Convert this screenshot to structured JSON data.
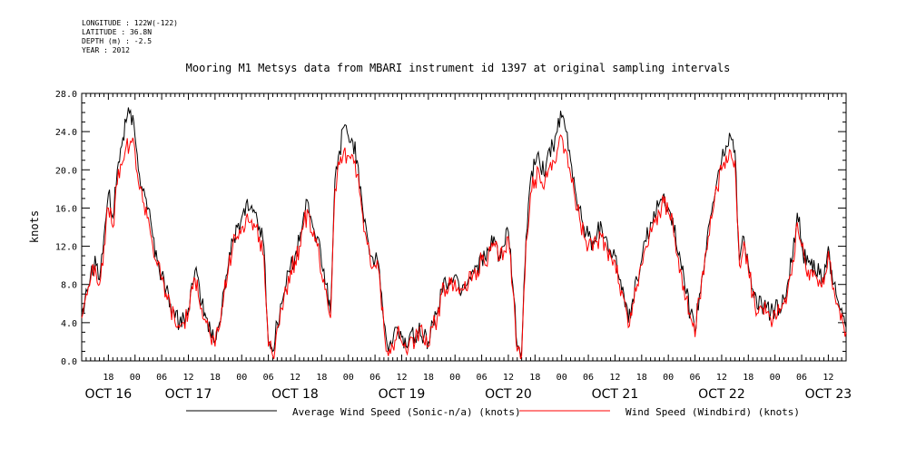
{
  "meta": {
    "longitude": "LONGITUDE : 122W(-122)",
    "latitude": "LATITUDE : 36.8N",
    "depth": "DEPTH (m) : -2.5",
    "year": "YEAR : 2012"
  },
  "chart_data": {
    "type": "line",
    "title": "Mooring M1 Metsys data from MBARI instrument id 1397 at original sampling intervals",
    "ylabel": "knots",
    "xlabel": "",
    "ylim": [
      0,
      28
    ],
    "yticks": [
      "0.0",
      "4.0",
      "8.0",
      "12.0",
      "16.0",
      "20.0",
      "24.0",
      "28.0"
    ],
    "xlim_hours": [
      0,
      172
    ],
    "x_unit": "hours since Oct 16 12:00, 2012",
    "hour_ticks": [
      {
        "h": 6,
        "label": "18"
      },
      {
        "h": 12,
        "label": "00"
      },
      {
        "h": 18,
        "label": "06"
      },
      {
        "h": 24,
        "label": "12"
      },
      {
        "h": 30,
        "label": "18"
      },
      {
        "h": 36,
        "label": "00"
      },
      {
        "h": 42,
        "label": "06"
      },
      {
        "h": 48,
        "label": "12"
      },
      {
        "h": 54,
        "label": "18"
      },
      {
        "h": 60,
        "label": "00"
      },
      {
        "h": 66,
        "label": "06"
      },
      {
        "h": 72,
        "label": "12"
      },
      {
        "h": 78,
        "label": "18"
      },
      {
        "h": 84,
        "label": "00"
      },
      {
        "h": 90,
        "label": "06"
      },
      {
        "h": 96,
        "label": "12"
      },
      {
        "h": 102,
        "label": "18"
      },
      {
        "h": 108,
        "label": "00"
      },
      {
        "h": 114,
        "label": "06"
      },
      {
        "h": 120,
        "label": "12"
      },
      {
        "h": 126,
        "label": "18"
      },
      {
        "h": 132,
        "label": "00"
      },
      {
        "h": 138,
        "label": "06"
      },
      {
        "h": 144,
        "label": "12"
      },
      {
        "h": 150,
        "label": "18"
      },
      {
        "h": 156,
        "label": "00"
      },
      {
        "h": 162,
        "label": "06"
      },
      {
        "h": 168,
        "label": "12"
      }
    ],
    "date_labels": [
      {
        "h": 6,
        "label": "OCT 16"
      },
      {
        "h": 24,
        "label": "OCT 17"
      },
      {
        "h": 48,
        "label": "OCT 18"
      },
      {
        "h": 72,
        "label": "OCT 19"
      },
      {
        "h": 96,
        "label": "OCT 20"
      },
      {
        "h": 120,
        "label": "OCT 21"
      },
      {
        "h": 144,
        "label": "OCT 22"
      },
      {
        "h": 168,
        "label": "OCT 23"
      }
    ],
    "series": [
      {
        "name": "Average Wind Speed (Sonic-n/a) (knots)",
        "color": "#000000",
        "x": [
          0,
          1,
          2,
          3,
          4,
          5,
          6,
          7,
          8,
          9,
          10,
          11,
          12,
          13,
          14,
          15,
          16,
          17,
          18,
          19,
          20,
          21,
          22,
          23,
          24,
          25,
          26,
          27,
          28,
          29,
          30,
          31,
          32,
          33,
          34,
          35,
          36,
          37,
          38,
          39,
          40,
          41,
          42,
          43,
          44,
          45,
          46,
          47,
          48,
          49,
          50,
          51,
          52,
          53,
          54,
          55,
          56,
          57,
          58,
          59,
          60,
          61,
          62,
          63,
          64,
          65,
          66,
          67,
          68,
          69,
          70,
          71,
          72,
          73,
          74,
          75,
          76,
          77,
          78,
          79,
          80,
          81,
          82,
          83,
          84,
          85,
          86,
          87,
          88,
          89,
          90,
          91,
          92,
          93,
          94,
          95,
          96,
          97,
          98,
          99,
          100,
          101,
          102,
          103,
          104,
          105,
          106,
          107,
          108,
          109,
          110,
          111,
          112,
          113,
          114,
          115,
          116,
          117,
          118,
          119,
          120,
          121,
          122,
          123,
          124,
          125,
          126,
          127,
          128,
          129,
          130,
          131,
          132,
          133,
          134,
          135,
          136,
          137,
          138,
          139,
          140,
          141,
          142,
          143,
          144,
          145,
          146,
          147,
          148,
          149,
          150,
          151,
          152,
          153,
          154,
          155,
          156,
          157,
          158,
          159,
          160,
          161,
          162,
          163,
          164,
          165,
          166,
          167,
          168,
          169,
          170,
          171,
          172
        ],
        "y": [
          5.0,
          7.5,
          9.0,
          11.0,
          8.5,
          13.0,
          17.5,
          15.0,
          20.0,
          22.5,
          25.0,
          26.2,
          23.5,
          19.5,
          18.0,
          16.0,
          13.0,
          10.5,
          9.0,
          7.5,
          6.0,
          4.5,
          4.0,
          4.5,
          5.5,
          8.0,
          9.0,
          6.0,
          4.5,
          3.0,
          2.0,
          4.0,
          7.5,
          10.0,
          12.5,
          14.0,
          15.0,
          16.5,
          16.0,
          15.5,
          14.0,
          12.0,
          2.0,
          1.0,
          4.0,
          6.0,
          8.0,
          10.0,
          11.0,
          12.5,
          15.5,
          16.5,
          14.0,
          13.0,
          10.0,
          8.0,
          5.0,
          19.0,
          22.0,
          24.5,
          23.5,
          23.0,
          21.0,
          17.0,
          14.0,
          11.0,
          10.5,
          9.5,
          4.0,
          1.0,
          2.0,
          3.5,
          2.5,
          1.5,
          3.0,
          2.5,
          4.0,
          2.5,
          2.0,
          4.0,
          5.0,
          7.5,
          8.0,
          8.5,
          9.0,
          7.5,
          8.0,
          8.5,
          9.5,
          10.0,
          11.0,
          10.5,
          12.0,
          12.5,
          11.0,
          12.0,
          13.5,
          8.0,
          1.5,
          1.0,
          13.0,
          19.0,
          20.5,
          21.0,
          19.5,
          22.0,
          22.5,
          24.0,
          25.5,
          24.0,
          21.0,
          18.0,
          16.0,
          14.0,
          13.0,
          12.5,
          13.5,
          14.0,
          13.0,
          11.5,
          11.0,
          8.5,
          7.0,
          4.0,
          6.5,
          8.5,
          10.5,
          12.5,
          14.5,
          15.0,
          16.5,
          17.5,
          16.0,
          15.0,
          11.5,
          9.5,
          7.0,
          5.0,
          3.0,
          7.0,
          9.5,
          14.0,
          16.5,
          19.0,
          21.0,
          22.5,
          23.5,
          22.0,
          10.5,
          13.0,
          10.0,
          7.5,
          5.5,
          6.0,
          5.5,
          5.0,
          5.5,
          5.5,
          6.5,
          8.5,
          11.0,
          15.5,
          12.5,
          10.0,
          10.0,
          9.5,
          9.0,
          8.5,
          12.0,
          8.0,
          6.5,
          5.5,
          3.5
        ]
      },
      {
        "name": "Wind Speed (Windbird) (knots)",
        "color": "#ff0000",
        "x": [
          0,
          1,
          2,
          3,
          4,
          5,
          6,
          7,
          8,
          9,
          10,
          11,
          12,
          13,
          14,
          15,
          16,
          17,
          18,
          19,
          20,
          21,
          22,
          23,
          24,
          25,
          26,
          27,
          28,
          29,
          30,
          31,
          32,
          33,
          34,
          35,
          36,
          37,
          38,
          39,
          40,
          41,
          42,
          43,
          44,
          45,
          46,
          47,
          48,
          49,
          50,
          51,
          52,
          53,
          54,
          55,
          56,
          57,
          58,
          59,
          60,
          61,
          62,
          63,
          64,
          65,
          66,
          67,
          68,
          69,
          70,
          71,
          72,
          73,
          74,
          75,
          76,
          77,
          78,
          79,
          80,
          81,
          82,
          83,
          84,
          85,
          86,
          87,
          88,
          89,
          90,
          91,
          92,
          93,
          94,
          95,
          96,
          97,
          98,
          99,
          100,
          101,
          102,
          103,
          104,
          105,
          106,
          107,
          108,
          109,
          110,
          111,
          112,
          113,
          114,
          115,
          116,
          117,
          118,
          119,
          120,
          121,
          122,
          123,
          124,
          125,
          126,
          127,
          128,
          129,
          130,
          131,
          132,
          133,
          134,
          135,
          136,
          137,
          138,
          139,
          140,
          141,
          142,
          143,
          144,
          145,
          146,
          147,
          148,
          149,
          150,
          151,
          152,
          153,
          154,
          155,
          156,
          157,
          158,
          159,
          160,
          161,
          162,
          163,
          164,
          165,
          166,
          167,
          168,
          169,
          170,
          171,
          172
        ],
        "y": [
          4.5,
          7.0,
          8.5,
          10.0,
          8.0,
          12.0,
          16.0,
          14.0,
          18.5,
          20.5,
          22.5,
          23.0,
          22.0,
          18.0,
          16.5,
          15.0,
          12.0,
          10.0,
          8.5,
          7.0,
          5.5,
          4.0,
          3.5,
          4.0,
          5.0,
          7.5,
          8.5,
          5.5,
          4.0,
          2.5,
          1.5,
          3.5,
          7.0,
          9.5,
          12.0,
          13.0,
          14.0,
          15.0,
          14.5,
          14.0,
          13.0,
          11.0,
          1.5,
          0.5,
          3.5,
          5.5,
          7.5,
          9.5,
          10.5,
          12.0,
          14.5,
          15.5,
          13.0,
          12.0,
          9.0,
          7.5,
          4.5,
          18.0,
          20.5,
          22.0,
          21.5,
          21.5,
          19.5,
          16.0,
          13.0,
          10.0,
          10.0,
          9.0,
          3.5,
          0.5,
          1.5,
          3.0,
          2.0,
          1.0,
          2.5,
          2.0,
          3.5,
          2.0,
          1.5,
          3.5,
          4.5,
          7.0,
          7.5,
          8.0,
          8.5,
          7.0,
          7.5,
          8.0,
          9.0,
          9.5,
          10.5,
          10.0,
          11.5,
          12.0,
          10.5,
          11.5,
          13.0,
          7.5,
          1.0,
          0.5,
          12.5,
          17.5,
          19.0,
          19.5,
          18.0,
          20.0,
          21.0,
          22.0,
          23.5,
          22.0,
          19.5,
          17.0,
          15.0,
          13.0,
          12.0,
          11.5,
          12.5,
          13.0,
          12.0,
          11.0,
          10.5,
          8.0,
          6.5,
          3.5,
          6.0,
          8.0,
          10.0,
          12.0,
          14.0,
          14.5,
          15.5,
          16.5,
          15.5,
          14.5,
          11.0,
          9.0,
          6.5,
          4.5,
          2.5,
          6.5,
          9.0,
          13.0,
          15.5,
          18.0,
          20.0,
          21.5,
          22.0,
          21.0,
          10.0,
          12.5,
          9.5,
          7.0,
          5.0,
          5.5,
          5.0,
          4.5,
          5.0,
          5.0,
          6.0,
          8.0,
          10.5,
          14.5,
          12.0,
          9.5,
          9.5,
          9.0,
          8.5,
          8.0,
          11.5,
          7.5,
          6.0,
          5.0,
          3.0
        ]
      }
    ],
    "legend_placement": "bottom"
  }
}
